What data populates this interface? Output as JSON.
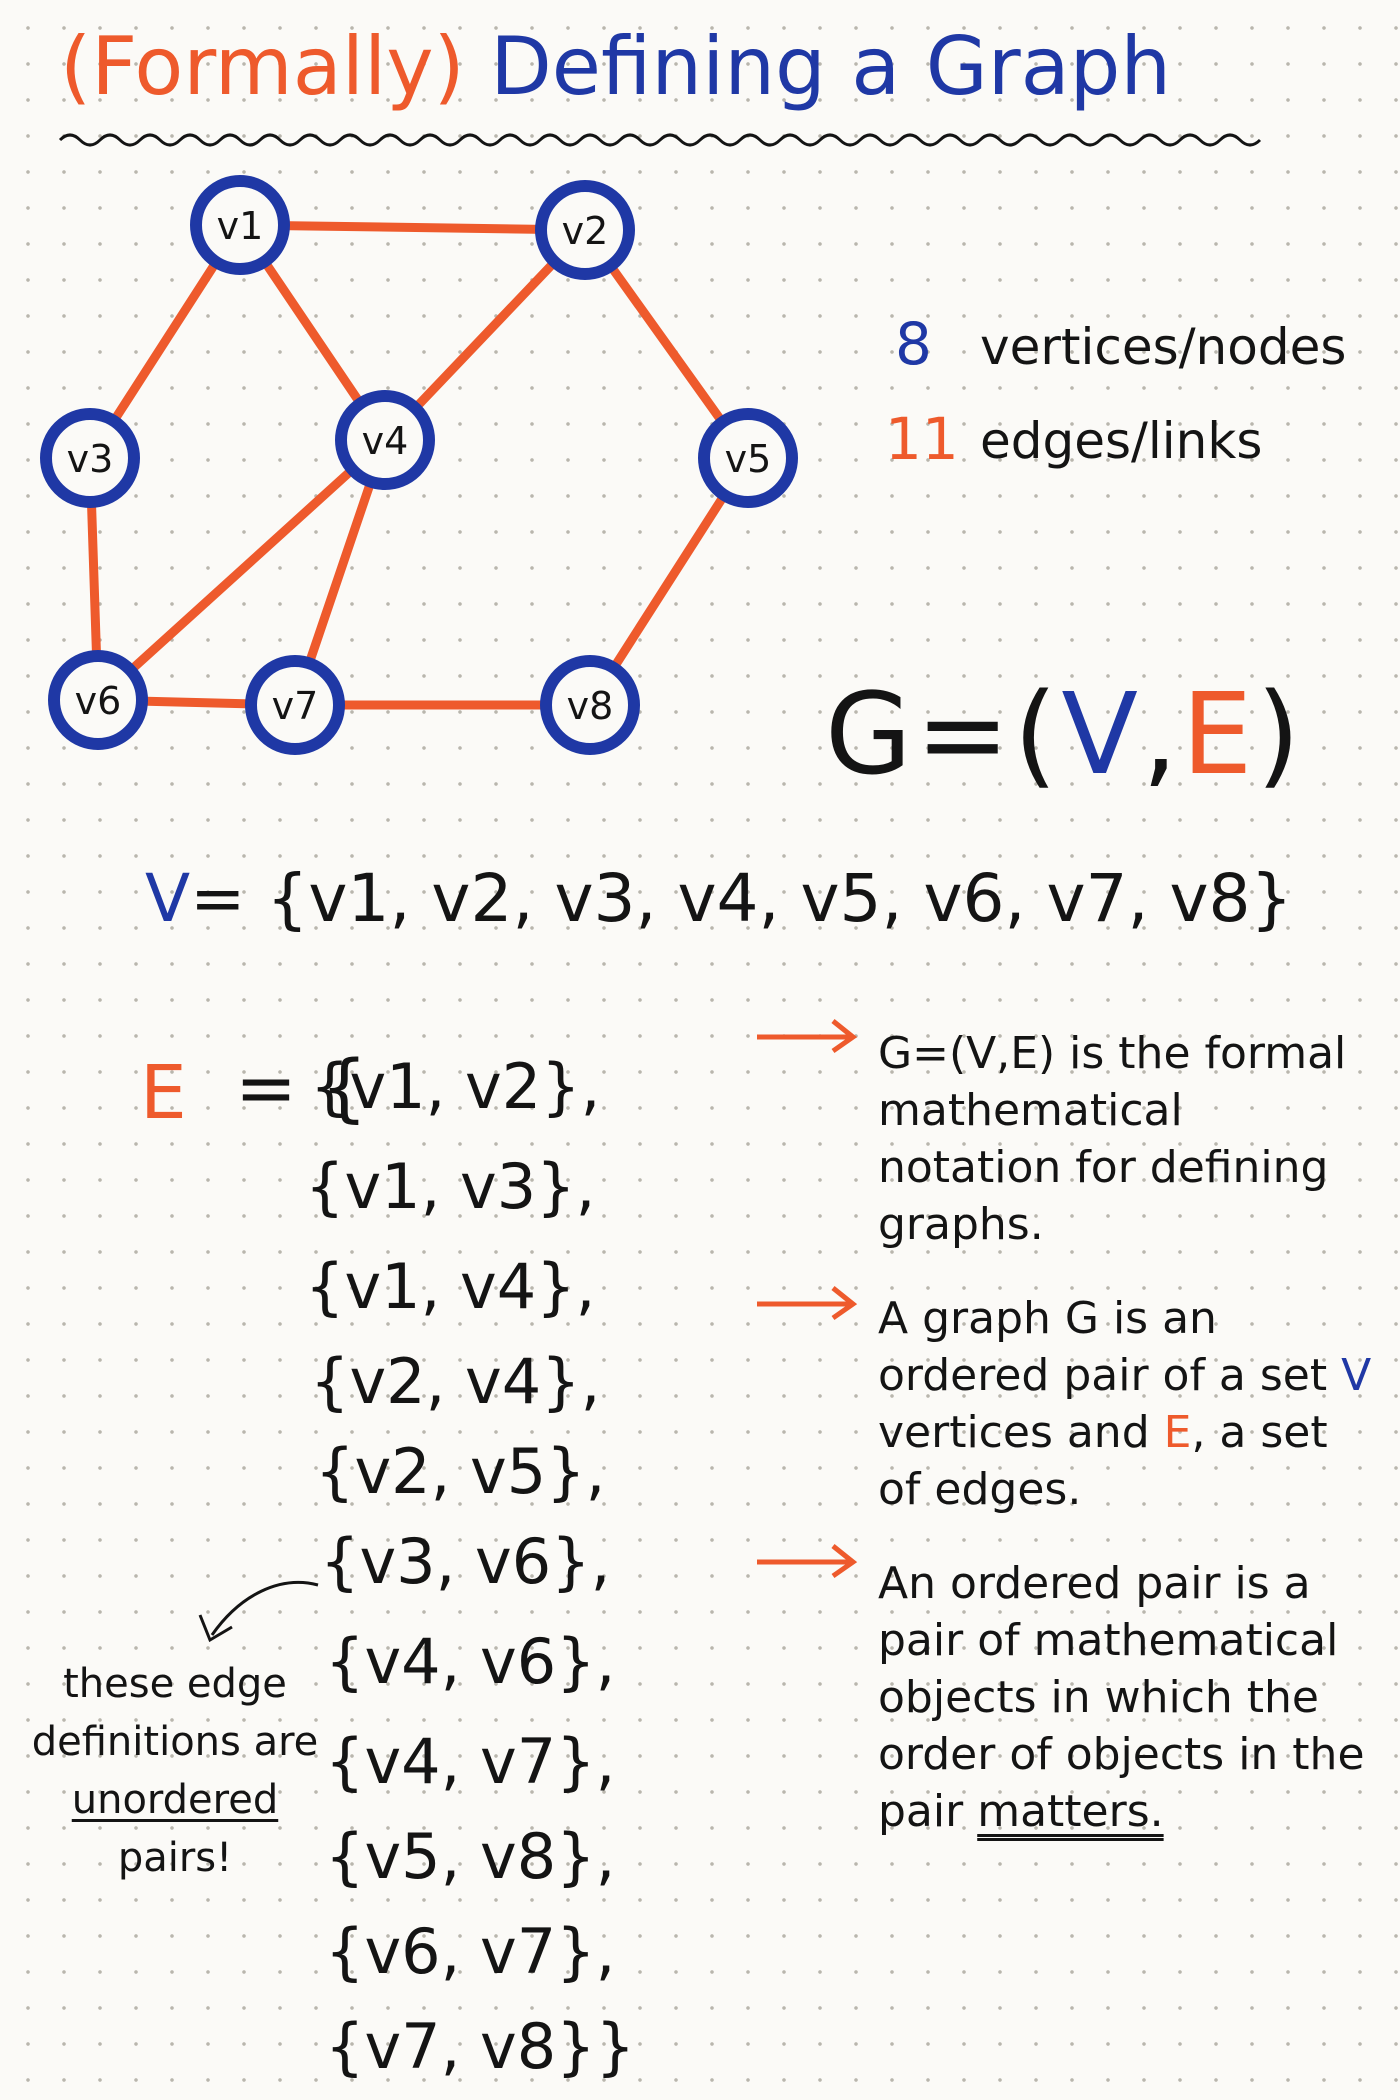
{
  "title": {
    "formally": "(Formally)",
    "rest": "Defining a Graph"
  },
  "colors": {
    "vertex": "#1f38a5",
    "edge": "#ee5a2c",
    "ink": "#141414"
  },
  "graph": {
    "vertices": [
      {
        "id": "v1",
        "label": "v1"
      },
      {
        "id": "v2",
        "label": "v2"
      },
      {
        "id": "v3",
        "label": "v3"
      },
      {
        "id": "v4",
        "label": "v4"
      },
      {
        "id": "v5",
        "label": "v5"
      },
      {
        "id": "v6",
        "label": "v6"
      },
      {
        "id": "v7",
        "label": "v7"
      },
      {
        "id": "v8",
        "label": "v8"
      }
    ],
    "edges": [
      [
        "v1",
        "v2"
      ],
      [
        "v1",
        "v3"
      ],
      [
        "v1",
        "v4"
      ],
      [
        "v2",
        "v4"
      ],
      [
        "v2",
        "v5"
      ],
      [
        "v3",
        "v6"
      ],
      [
        "v4",
        "v6"
      ],
      [
        "v4",
        "v7"
      ],
      [
        "v5",
        "v8"
      ],
      [
        "v6",
        "v7"
      ],
      [
        "v7",
        "v8"
      ]
    ]
  },
  "stats": {
    "vertex_count": "8",
    "vertex_label": "vertices/nodes",
    "edge_count": "11",
    "edge_label": "edges/links"
  },
  "formula": {
    "g": "G=(",
    "v": "V",
    "comma": ",",
    "e": "E",
    "close": ")"
  },
  "vertex_set": {
    "lhs": "V",
    "body": "= {v1, v2, v3, v4, v5, v6, v7, v8}"
  },
  "edge_set": {
    "lhs": "E",
    "open": "= {",
    "items": [
      "{v1, v2},",
      "{v1, v3},",
      "{v1, v4},",
      "{v2, v4},",
      "{v2, v5},",
      "{v3, v6},",
      "{v4, v6},",
      "{v4, v7},",
      "{v5, v8},",
      "{v6, v7},",
      "{v7, v8}}"
    ]
  },
  "side_note": {
    "before": "these edge definitions are",
    "underlined": "unordered",
    "after": "pairs!"
  },
  "notes": [
    {
      "text": "G=(V,E) is the formal mathematical notation for defining graphs."
    },
    {
      "p1": "A graph G is an ordered pair of a set",
      "v": "V",
      "p2": "vertices and",
      "e": "E",
      "p3": ", a set of edges."
    },
    {
      "p1": "An ordered pair is a pair of mathematical objects in which the order of objects in the pair",
      "underlined": "matters."
    }
  ]
}
